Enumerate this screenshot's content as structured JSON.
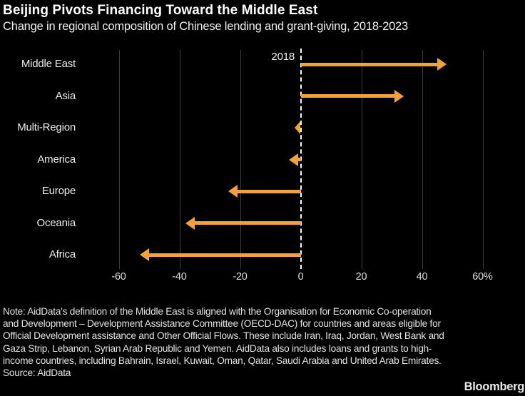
{
  "chart_data": {
    "type": "bar",
    "variant": "arrow-change",
    "orientation": "horizontal",
    "title": "Beijing Pivots Financing Toward the Middle East",
    "subtitle": "Change in regional composition of Chinese lending and grant-giving, 2018-2023",
    "categories": [
      "Middle East",
      "Asia",
      "Multi-Region",
      "America",
      "Europe",
      "Oceania",
      "Africa"
    ],
    "values": [
      48,
      34,
      -2,
      -4,
      -24,
      -38,
      -53
    ],
    "baseline": 0,
    "baseline_label": "2018",
    "x_ticks": [
      -60,
      -40,
      -20,
      0,
      20,
      40,
      60
    ],
    "x_tick_labels": [
      "-60",
      "-40",
      "-20",
      "0",
      "20",
      "40",
      "60%"
    ],
    "xlim": [
      -70,
      74
    ],
    "grid": true,
    "legend": "none",
    "colors": {
      "arrow": "#f2a23a",
      "baseline": "#ffffff",
      "gridline": "#3e3e42",
      "background": "#000000",
      "text": "#e9e9e9"
    }
  },
  "footer": {
    "note_lines": [
      "Note: AidData's definition of the Middle East is aligned with the Organisation for Economic Co-operation",
      "and Development – Development Assistance Committee (OECD-DAC) for countries and areas eligible for",
      "Official Development assistance and Other Official Flows. These include Iran, Iraq, Jordan, West Bank and",
      "Gaza Strip, Lebanon, Syrian Arab Republic and Yemen. AidData also includes loans and grants to high-",
      "income countries, including Bahrain, Israel, Kuwait, Oman, Qatar, Saudi Arabia and United Arab Emirates."
    ],
    "source": "Source: AidData",
    "brand": "Bloomberg"
  }
}
